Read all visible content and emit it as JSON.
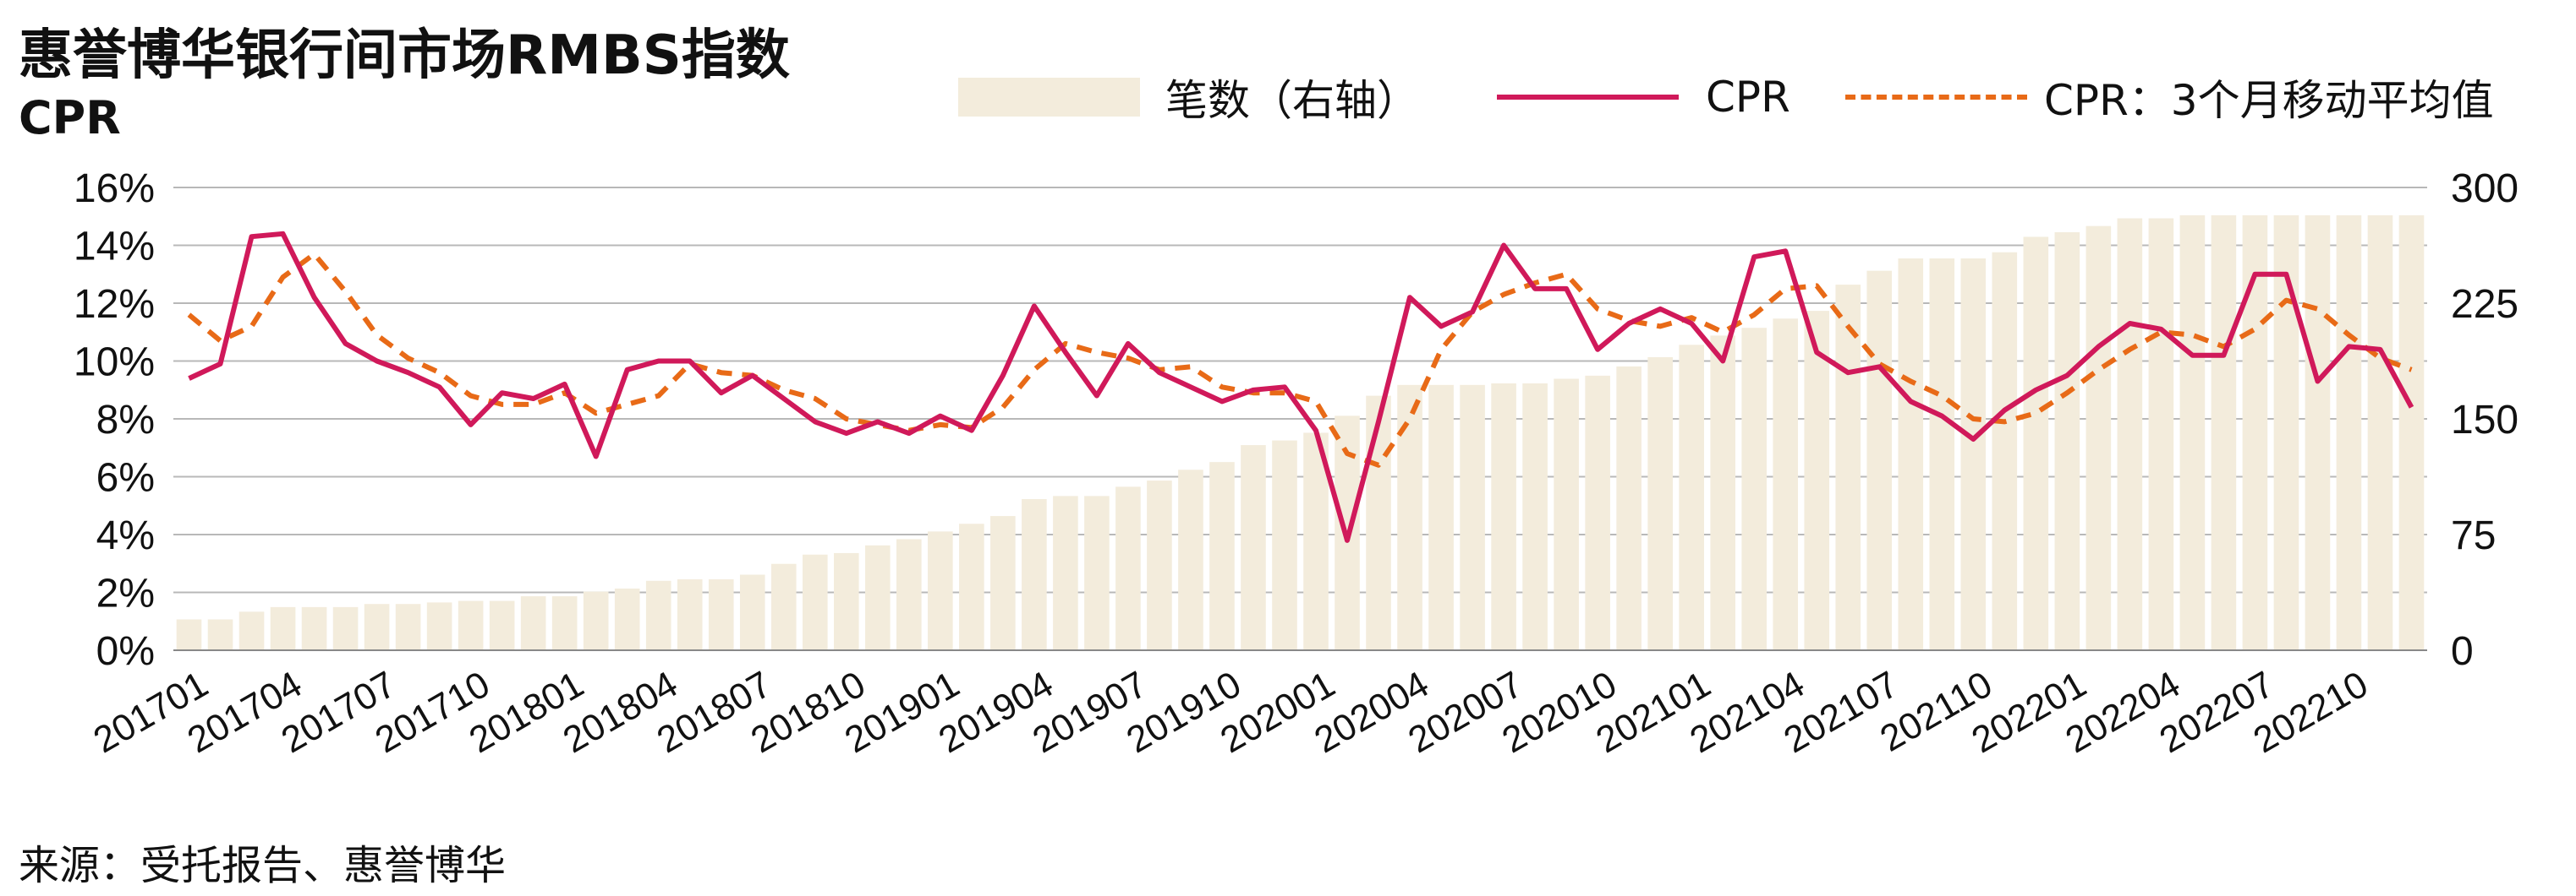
{
  "title": "惠誉博华银行间市场RMBS指数",
  "source": "来源：受托报告、惠誉博华",
  "legend": {
    "bars": "笔数（右轴）",
    "cpr": "CPR",
    "ma": "CPR：3个月移动平均值"
  },
  "colors": {
    "bars": "#f3ecdc",
    "cpr": "#d0195a",
    "ma": "#e86a17",
    "grid": "#b8b8b8"
  },
  "chart_data": {
    "type": "bar",
    "ylabel": "CPR",
    "y_left": {
      "min": 0,
      "max": 16,
      "step": 2,
      "unit": "%"
    },
    "y_right": {
      "min": 0,
      "max": 300,
      "step": 75
    },
    "x_tick_labels": [
      "201701",
      "201704",
      "201707",
      "201710",
      "201801",
      "201804",
      "201807",
      "201810",
      "201901",
      "201904",
      "201907",
      "201910",
      "202001",
      "202004",
      "202007",
      "202010",
      "202101",
      "202104",
      "202107",
      "202110",
      "202201",
      "202204",
      "202207",
      "202210"
    ],
    "categories": [
      "201701",
      "201702",
      "201703",
      "201704",
      "201705",
      "201706",
      "201707",
      "201708",
      "201709",
      "201710",
      "201711",
      "201712",
      "201801",
      "201802",
      "201803",
      "201804",
      "201805",
      "201806",
      "201807",
      "201808",
      "201809",
      "201810",
      "201811",
      "201812",
      "201901",
      "201902",
      "201903",
      "201904",
      "201905",
      "201906",
      "201907",
      "201908",
      "201909",
      "201910",
      "201911",
      "201912",
      "202001",
      "202002",
      "202003",
      "202004",
      "202005",
      "202006",
      "202007",
      "202008",
      "202009",
      "202010",
      "202011",
      "202012",
      "202101",
      "202102",
      "202103",
      "202104",
      "202105",
      "202106",
      "202107",
      "202108",
      "202109",
      "202110",
      "202111",
      "202112",
      "202201",
      "202202",
      "202203",
      "202204",
      "202205",
      "202206",
      "202207",
      "202208",
      "202209",
      "202210",
      "202211",
      "202212"
    ],
    "series": [
      {
        "name": "笔数（右轴）",
        "type": "bar",
        "axis": "right",
        "values": [
          20,
          20,
          25,
          28,
          28,
          28,
          30,
          30,
          31,
          32,
          32,
          35,
          35,
          38,
          40,
          45,
          46,
          46,
          49,
          56,
          62,
          63,
          68,
          72,
          77,
          82,
          87,
          98,
          100,
          100,
          106,
          110,
          117,
          122,
          133,
          136,
          141,
          152,
          165,
          172,
          172,
          172,
          173,
          173,
          176,
          178,
          184,
          190,
          198,
          204,
          209,
          215,
          220,
          237,
          246,
          254,
          254,
          254,
          258,
          268,
          271,
          275,
          280,
          280,
          282,
          282,
          282,
          282,
          282,
          282,
          282,
          282
        ]
      },
      {
        "name": "CPR",
        "type": "line",
        "axis": "left",
        "values": [
          9.4,
          9.9,
          14.3,
          14.4,
          12.2,
          10.6,
          10.0,
          9.6,
          9.1,
          7.8,
          8.9,
          8.7,
          9.2,
          6.7,
          9.7,
          10.0,
          10.0,
          8.9,
          9.5,
          8.7,
          7.9,
          7.5,
          7.9,
          7.5,
          8.1,
          7.6,
          9.5,
          11.9,
          10.3,
          8.8,
          10.6,
          9.6,
          9.1,
          8.6,
          9.0,
          9.1,
          7.6,
          3.8,
          7.9,
          12.2,
          11.2,
          11.7,
          14.0,
          12.5,
          12.5,
          10.4,
          11.3,
          11.8,
          11.3,
          10.0,
          13.6,
          13.8,
          10.3,
          9.6,
          9.8,
          8.6,
          8.1,
          7.3,
          8.3,
          9.0,
          9.5,
          10.5,
          11.3,
          11.1,
          10.2,
          10.2,
          13.0,
          13.0,
          9.3,
          10.5,
          10.4,
          8.4
        ]
      },
      {
        "name": "CPR：3个月移动平均值",
        "type": "line",
        "axis": "left",
        "dashed": true,
        "values": [
          11.6,
          10.7,
          11.2,
          12.9,
          13.7,
          12.4,
          10.9,
          10.1,
          9.6,
          8.8,
          8.5,
          8.5,
          8.9,
          8.2,
          8.5,
          8.8,
          9.9,
          9.6,
          9.5,
          9.0,
          8.7,
          8.0,
          7.8,
          7.6,
          7.8,
          7.7,
          8.4,
          9.7,
          10.6,
          10.3,
          10.1,
          9.7,
          9.8,
          9.1,
          8.9,
          8.9,
          8.6,
          6.8,
          6.4,
          8.0,
          10.4,
          11.7,
          12.3,
          12.7,
          13.0,
          11.8,
          11.4,
          11.2,
          11.5,
          11.0,
          11.6,
          12.5,
          12.6,
          11.2,
          9.9,
          9.3,
          8.8,
          8.0,
          7.9,
          8.2,
          8.9,
          9.7,
          10.4,
          11.0,
          10.9,
          10.5,
          11.1,
          12.1,
          11.8,
          10.9,
          10.1,
          9.7
        ]
      }
    ]
  }
}
